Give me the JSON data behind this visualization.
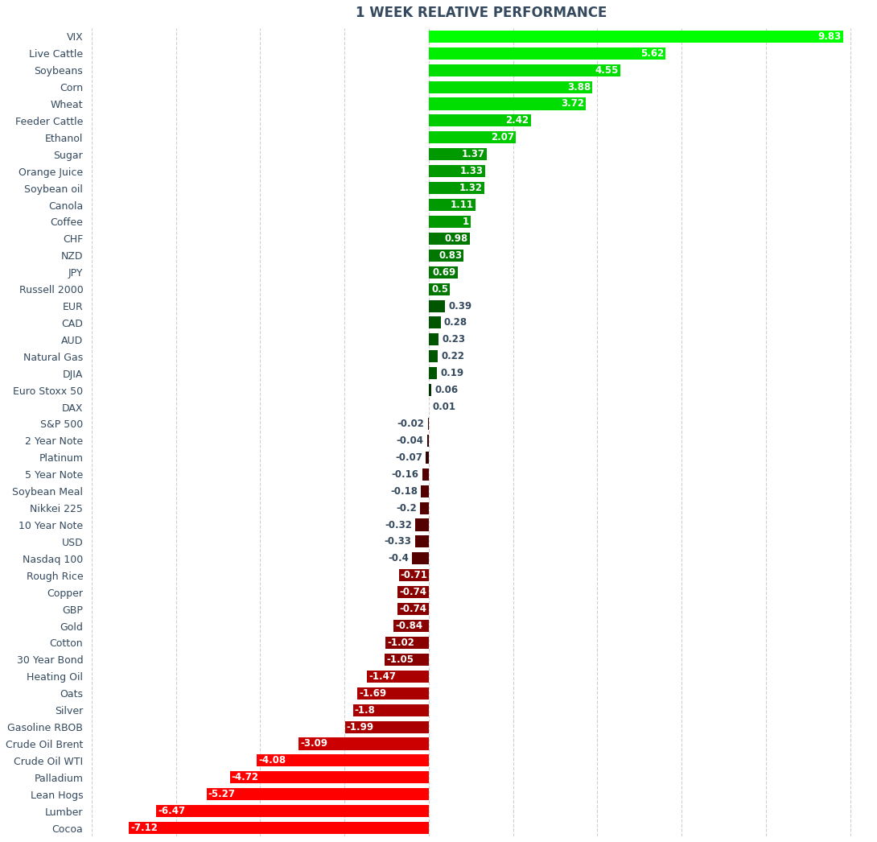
{
  "title": "1 WEEK RELATIVE PERFORMANCE",
  "categories": [
    "VIX",
    "Live Cattle",
    "Soybeans",
    "Corn",
    "Wheat",
    "Feeder Cattle",
    "Ethanol",
    "Sugar",
    "Orange Juice",
    "Soybean oil",
    "Canola",
    "Coffee",
    "CHF",
    "NZD",
    "JPY",
    "Russell 2000",
    "EUR",
    "CAD",
    "AUD",
    "Natural Gas",
    "DJIA",
    "Euro Stoxx 50",
    "DAX",
    "S&P 500",
    "2 Year Note",
    "Platinum",
    "5 Year Note",
    "Soybean Meal",
    "Nikkei 225",
    "10 Year Note",
    "USD",
    "Nasdaq 100",
    "Rough Rice",
    "Copper",
    "GBP",
    "Gold",
    "Cotton",
    "30 Year Bond",
    "Heating Oil",
    "Oats",
    "Silver",
    "Gasoline RBOB",
    "Crude Oil Brent",
    "Crude Oil WTI",
    "Palladium",
    "Lean Hogs",
    "Lumber",
    "Cocoa"
  ],
  "values": [
    9.83,
    5.62,
    4.55,
    3.88,
    3.72,
    2.42,
    2.07,
    1.37,
    1.33,
    1.32,
    1.11,
    1.0,
    0.98,
    0.83,
    0.69,
    0.5,
    0.39,
    0.28,
    0.23,
    0.22,
    0.19,
    0.06,
    0.01,
    -0.02,
    -0.04,
    -0.07,
    -0.16,
    -0.18,
    -0.2,
    -0.32,
    -0.33,
    -0.4,
    -0.71,
    -0.74,
    -0.74,
    -0.84,
    -1.02,
    -1.05,
    -1.47,
    -1.69,
    -1.8,
    -1.99,
    -3.09,
    -4.08,
    -4.72,
    -5.27,
    -6.47,
    -7.12
  ],
  "background_color": "#ffffff",
  "title_color": "#34495e",
  "label_color": "#34495e",
  "grid_color": "#bbbbbb",
  "xlim": [
    -8.0,
    10.5
  ],
  "bar_height": 0.72,
  "title_fontsize": 12,
  "label_fontsize": 9,
  "value_fontsize": 8.5
}
